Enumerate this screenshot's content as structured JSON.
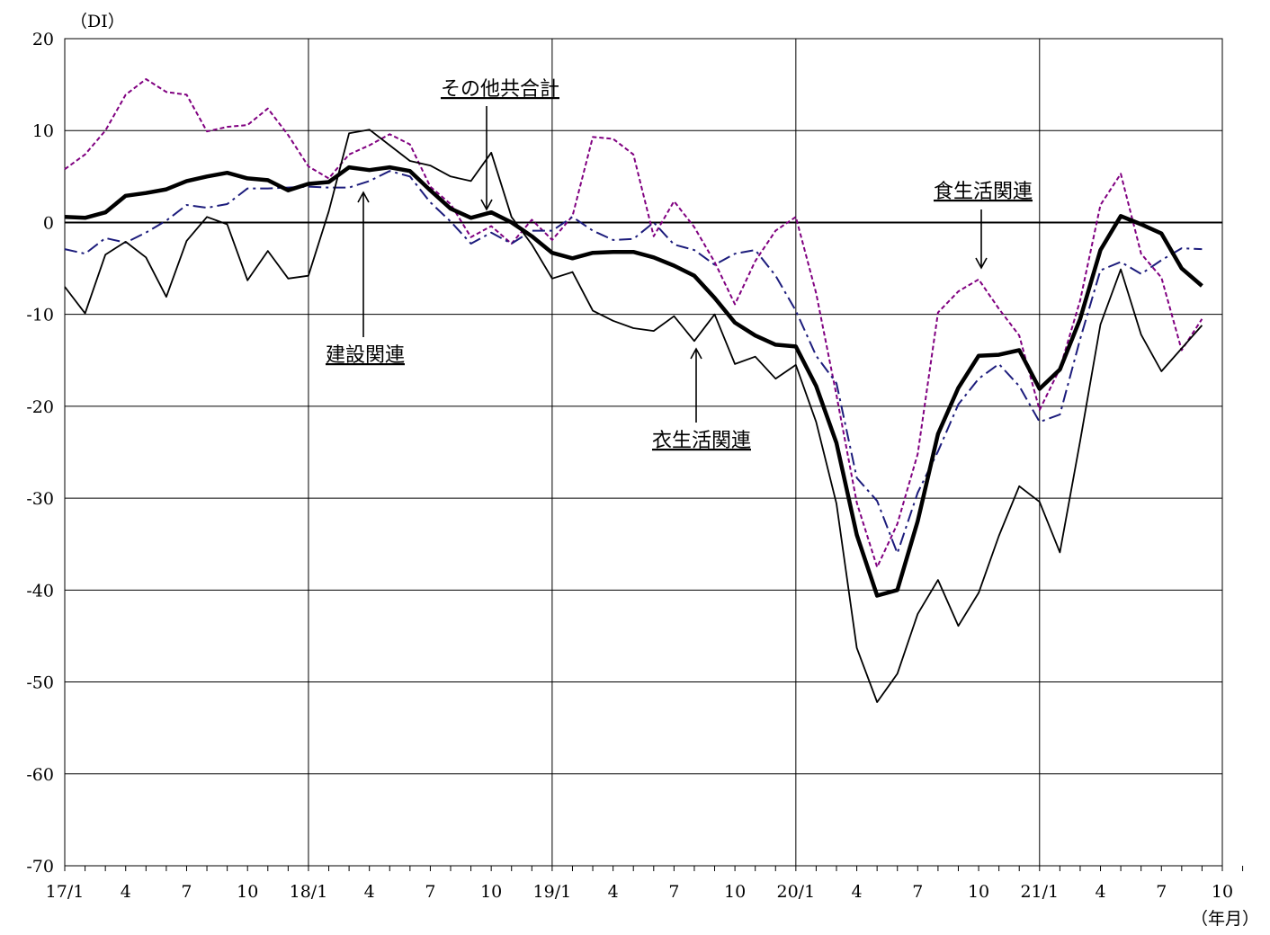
{
  "chart_data": {
    "type": "line",
    "title": "",
    "ylabel": "（DI）",
    "xlabel": "（年月）",
    "ylim": [
      -70,
      20
    ],
    "yticks": [
      20,
      10,
      0,
      -10,
      -20,
      -30,
      -40,
      -50,
      -60,
      -70
    ],
    "ytick_labels": [
      "20",
      "10",
      "0",
      "-10",
      "-20",
      "-30",
      "-40",
      "-50",
      "-60",
      "-70"
    ],
    "xtick_labels": [
      "17/1",
      "4",
      "7",
      "10",
      "18/1",
      "4",
      "7",
      "10",
      "19/1",
      "4",
      "7",
      "10",
      "20/1",
      "4",
      "7",
      "10",
      "21/1",
      "4",
      "7",
      "10"
    ],
    "xtick_months": [
      1,
      4,
      7,
      10,
      13,
      16,
      19,
      22,
      25,
      28,
      31,
      34,
      37,
      40,
      43,
      46,
      49,
      52,
      55,
      58
    ],
    "x_start": 1,
    "x_end": 58,
    "grid": true,
    "year_dividers": [
      13,
      25,
      37,
      49
    ],
    "series": [
      {
        "name": "その他共合計",
        "color": "#000000",
        "style": "thick",
        "values": [
          0.6,
          0.5,
          1.1,
          2.9,
          3.2,
          3.6,
          4.5,
          5.0,
          5.4,
          4.8,
          4.6,
          3.5,
          4.2,
          4.4,
          6.0,
          5.7,
          6.0,
          5.6,
          3.5,
          1.5,
          0.5,
          1.1,
          0,
          -1.5,
          -3.3,
          -3.9,
          -3.3,
          -3.2,
          -3.2,
          -3.8,
          -4.7,
          -5.8,
          -8.2,
          -10.9,
          -12.3,
          -13.3,
          -13.5,
          -17.8,
          -24.0,
          -34.0,
          -40.6,
          -40.0,
          -32.5,
          -23.0,
          -18.0,
          -14.5,
          -14.4,
          -13.9,
          -18.1,
          -16.0,
          -10.5,
          -3.0,
          0.7,
          -0.2,
          -1.2,
          -5.0,
          -6.9
        ]
      },
      {
        "name": "食生活関連",
        "color": "#800080",
        "style": "dashed",
        "values": [
          5.8,
          7.4,
          10.0,
          13.9,
          15.6,
          14.2,
          13.9,
          9.9,
          10.4,
          10.6,
          12.4,
          9.5,
          6.1,
          4.8,
          7.4,
          8.4,
          9.6,
          8.5,
          3.9,
          2.0,
          -1.6,
          -0.4,
          -2.3,
          0.3,
          -1.9,
          0.7,
          9.3,
          9.1,
          7.4,
          -1.5,
          2.3,
          -0.5,
          -4.3,
          -8.9,
          -4.2,
          -0.9,
          0.6,
          -7.7,
          -18.8,
          -30.5,
          -37.5,
          -32.8,
          -25.2,
          -9.8,
          -7.5,
          -6.2,
          -9.4,
          -12.3,
          -20.4,
          -15.9,
          -8.5,
          1.9,
          5.3,
          -3.4,
          -6.0,
          -13.9,
          -10.5
        ]
      },
      {
        "name": "衣生活関連",
        "color": "#000000",
        "style": "thin",
        "values": [
          -7.0,
          -9.9,
          -3.5,
          -2.1,
          -3.8,
          -8.1,
          -2.0,
          0.6,
          -0.2,
          -6.3,
          -3.1,
          -6.1,
          -5.8,
          1.2,
          9.7,
          10.1,
          8.4,
          6.7,
          6.2,
          5.0,
          4.5,
          7.6,
          0.6,
          -2.4,
          -6.1,
          -5.4,
          -9.6,
          -10.7,
          -11.5,
          -11.8,
          -10.2,
          -12.9,
          -10.0,
          -15.4,
          -14.6,
          -17.0,
          -15.5,
          -21.7,
          -30.6,
          -46.3,
          -52.2,
          -49.1,
          -42.6,
          -38.9,
          -43.9,
          -40.3,
          -34.1,
          -28.7,
          -30.4,
          -35.9,
          -23.8,
          -11.1,
          -5.1,
          -12.2,
          -16.2,
          -13.7,
          -11.2
        ]
      },
      {
        "name": "建設関連",
        "color": "#1c1c7c",
        "style": "dashdot",
        "values": [
          -2.9,
          -3.4,
          -1.7,
          -2.2,
          -1.1,
          0.2,
          1.9,
          1.6,
          2.0,
          3.7,
          3.7,
          3.8,
          3.9,
          3.8,
          3.8,
          4.5,
          5.6,
          5.0,
          2.2,
          0.1,
          -2.3,
          -1.1,
          -2.3,
          -0.9,
          -0.9,
          0.6,
          -0.9,
          -1.9,
          -1.8,
          0,
          -2.4,
          -3.0,
          -4.6,
          -3.4,
          -3.0,
          -5.8,
          -9.6,
          -14.5,
          -17.5,
          -27.8,
          -30.3,
          -36.0,
          -29.4,
          -24.9,
          -19.8,
          -17.0,
          -15.4,
          -17.8,
          -21.7,
          -20.9,
          -12.7,
          -5.2,
          -4.3,
          -5.6,
          -4.1,
          -2.8,
          -2.9
        ]
      }
    ],
    "annotations": [
      {
        "label": "その他共合計",
        "target_series": "その他共合計"
      },
      {
        "label": "食生活関連",
        "target_series": "食生活関連"
      },
      {
        "label": "建設関連",
        "target_series": "建設関連"
      },
      {
        "label": "衣生活関連",
        "target_series": "衣生活関連"
      }
    ]
  }
}
